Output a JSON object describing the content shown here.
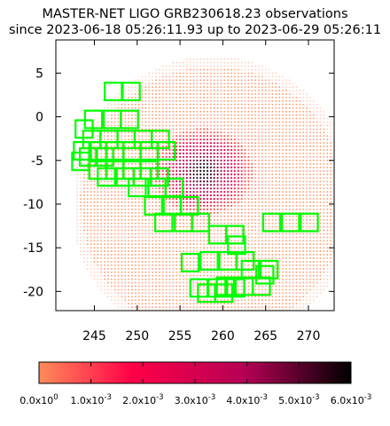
{
  "title_lines": [
    "MASTER-NET LIGO GRB230618.23 observations",
    "since 2023-06-18 05:26:11.93 up to 2023-06-29 05:26:11"
  ],
  "chart_data": {
    "type": "heatmap",
    "title": "MASTER-NET LIGO GRB230618.23 observations",
    "subtitle": "since 2023-06-18 05:26:11.93 up to 2023-06-29 05:26:11",
    "xlim": [
      240.5,
      273
    ],
    "ylim": [
      -22.2,
      8.8
    ],
    "x_ticks": [
      245,
      250,
      255,
      260,
      265,
      270
    ],
    "y_ticks": [
      5,
      0,
      -5,
      -10,
      -15,
      -20
    ],
    "x_tick_labels": [
      "245",
      "250",
      "255",
      "260",
      "265",
      "270"
    ],
    "y_tick_labels": [
      "5",
      "0",
      "-5",
      "-10",
      "-15",
      "-20"
    ],
    "grid": false,
    "probability_map": {
      "region_center": [
        258.8,
        -9.7
      ],
      "region_radius_deg": [
        16.6,
        16.6
      ],
      "peak_center": [
        257.7,
        -6.3
      ],
      "peak_value": 0.006,
      "colormap": [
        "#ff8c5a",
        "#ff0048",
        "#b40055",
        "#000000"
      ]
    },
    "observation_fields": [
      [
        247.2,
        2.9
      ],
      [
        249.3,
        2.9
      ],
      [
        244.9,
        -0.3
      ],
      [
        247.1,
        -0.3
      ],
      [
        249.1,
        -0.3
      ],
      [
        243.8,
        -1.4
      ],
      [
        244.7,
        -2.6
      ],
      [
        246.7,
        -2.6
      ],
      [
        248.7,
        -2.6
      ],
      [
        250.7,
        -2.6
      ],
      [
        252.7,
        -2.6
      ],
      [
        243.6,
        -3.9
      ],
      [
        245.4,
        -3.9
      ],
      [
        247.4,
        -3.9
      ],
      [
        249.4,
        -3.9
      ],
      [
        251.4,
        -3.9
      ],
      [
        253.4,
        -3.9
      ],
      [
        244.3,
        -4.6
      ],
      [
        246.2,
        -4.6
      ],
      [
        243.4,
        -5.1
      ],
      [
        245.4,
        -6.1
      ],
      [
        247.4,
        -6.1
      ],
      [
        249.4,
        -6.1
      ],
      [
        251.4,
        -6.1
      ],
      [
        246.4,
        -6.9
      ],
      [
        248.6,
        -6.9
      ],
      [
        250.6,
        -6.9
      ],
      [
        252.6,
        -6.9
      ],
      [
        250.0,
        -8.1
      ],
      [
        252.3,
        -8.1
      ],
      [
        254.3,
        -8.1
      ],
      [
        251.9,
        -10.2
      ],
      [
        254.1,
        -10.2
      ],
      [
        256.1,
        -10.2
      ],
      [
        253.1,
        -12.1
      ],
      [
        255.4,
        -12.1
      ],
      [
        257.4,
        -12.1
      ],
      [
        259.4,
        -13.5
      ],
      [
        261.4,
        -13.5
      ],
      [
        265.7,
        -12.1
      ],
      [
        267.9,
        -12.1
      ],
      [
        270.1,
        -12.1
      ],
      [
        261.6,
        -14.7
      ],
      [
        258.4,
        -16.5
      ],
      [
        260.6,
        -16.5
      ],
      [
        262.6,
        -16.5
      ],
      [
        256.2,
        -16.7
      ],
      [
        263.2,
        -17.5
      ],
      [
        265.4,
        -17.5
      ],
      [
        264.9,
        -18.1
      ],
      [
        260.3,
        -19.4
      ],
      [
        262.5,
        -19.4
      ],
      [
        264.5,
        -19.4
      ],
      [
        257.2,
        -19.6
      ],
      [
        259.3,
        -19.6
      ],
      [
        261.5,
        -19.6
      ],
      [
        258.1,
        -20.2
      ],
      [
        260.1,
        -20.2
      ]
    ],
    "field_size_deg": [
      2.0,
      2.0
    ],
    "field_color": "#00ff00",
    "colorbar": {
      "range": [
        0,
        0.006
      ],
      "tick_values": [
        0,
        0.001,
        0.002,
        0.003,
        0.004,
        0.005,
        0.006
      ],
      "tick_mantissas": [
        "0.0x10",
        "1.0x10",
        "2.0x10",
        "3.0x10",
        "4.0x10",
        "5.0x10",
        "6.0x10"
      ],
      "tick_exponents": [
        "0",
        "-3",
        "-3",
        "-3",
        "-3",
        "-3",
        "-3"
      ]
    }
  }
}
